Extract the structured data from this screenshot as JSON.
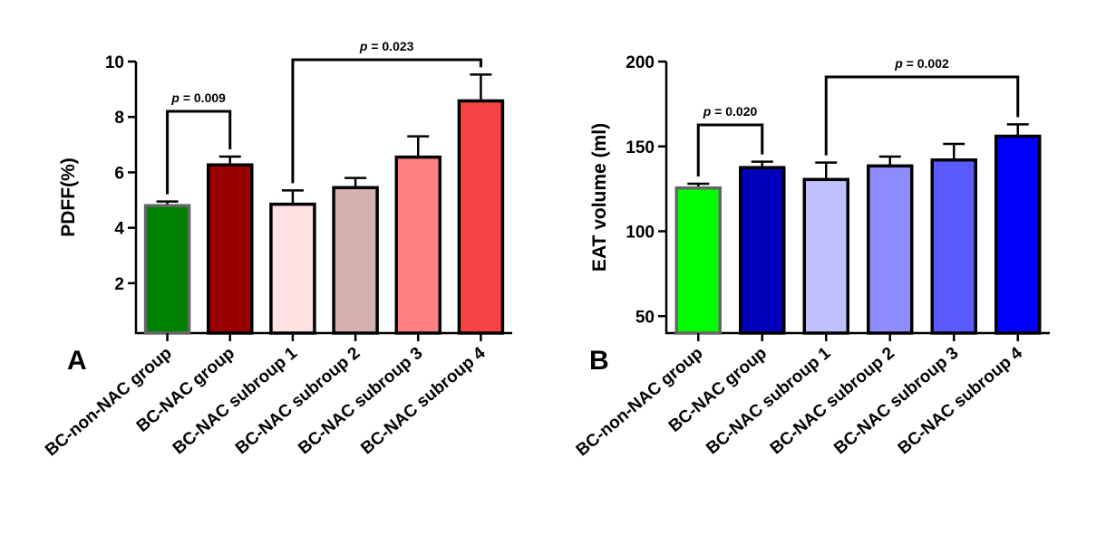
{
  "chart_data": [
    {
      "type": "bar",
      "panel": "A",
      "categories": [
        "BC-non-NAC group",
        "BC-NAC group",
        "BC-NAC subroup 1",
        "BC-NAC subroup 2",
        "BC-NAC subroup 3",
        "BC-NAC subroup 4"
      ],
      "values": [
        4.8,
        6.27,
        4.85,
        5.45,
        6.55,
        8.58
      ],
      "errors": [
        0.15,
        0.3,
        0.5,
        0.35,
        0.75,
        0.95
      ],
      "colors": [
        "#008000",
        "#990000",
        "#FFE0E3",
        "#D4B0AF",
        "#FF8080",
        "#F54444"
      ],
      "bar_edge_colors": [
        "#666666",
        "#000000",
        "#000000",
        "#000000",
        "#000000",
        "#000000"
      ],
      "ylabel": "PDFF(%)",
      "xlabel": "",
      "ylim": [
        0.2,
        10
      ],
      "yticks": [
        2,
        4,
        6,
        8,
        10
      ],
      "significance": [
        {
          "from": 0,
          "to": 1,
          "label": "p = 0.009"
        },
        {
          "from": 2,
          "to": 5,
          "label": "p = 0.023"
        }
      ],
      "grid": false
    },
    {
      "type": "bar",
      "panel": "B",
      "categories": [
        "BC-non-NAC group",
        "BC-NAC group",
        "BC-NAC subroup 1",
        "BC-NAC subroup 2",
        "BC-NAC subroup 3",
        "BC-NAC subroup 4"
      ],
      "values": [
        125.5,
        137.5,
        130.5,
        138.5,
        142,
        156
      ],
      "errors": [
        2.5,
        3.5,
        10,
        5.5,
        9.5,
        7
      ],
      "colors": [
        "#00FF00",
        "#0000BB",
        "#C0C0FF",
        "#8C8CFF",
        "#5A5AFF",
        "#0000FF"
      ],
      "bar_edge_colors": [
        "#666666",
        "#000000",
        "#000000",
        "#000000",
        "#000000",
        "#000000"
      ],
      "ylabel": "EAT volume (ml)",
      "xlabel": "",
      "ylim": [
        40,
        200
      ],
      "yticks": [
        50,
        100,
        150,
        200
      ],
      "significance": [
        {
          "from": 0,
          "to": 1,
          "label": "p = 0.020"
        },
        {
          "from": 2,
          "to": 5,
          "label": "p = 0.002"
        }
      ],
      "grid": false
    }
  ]
}
